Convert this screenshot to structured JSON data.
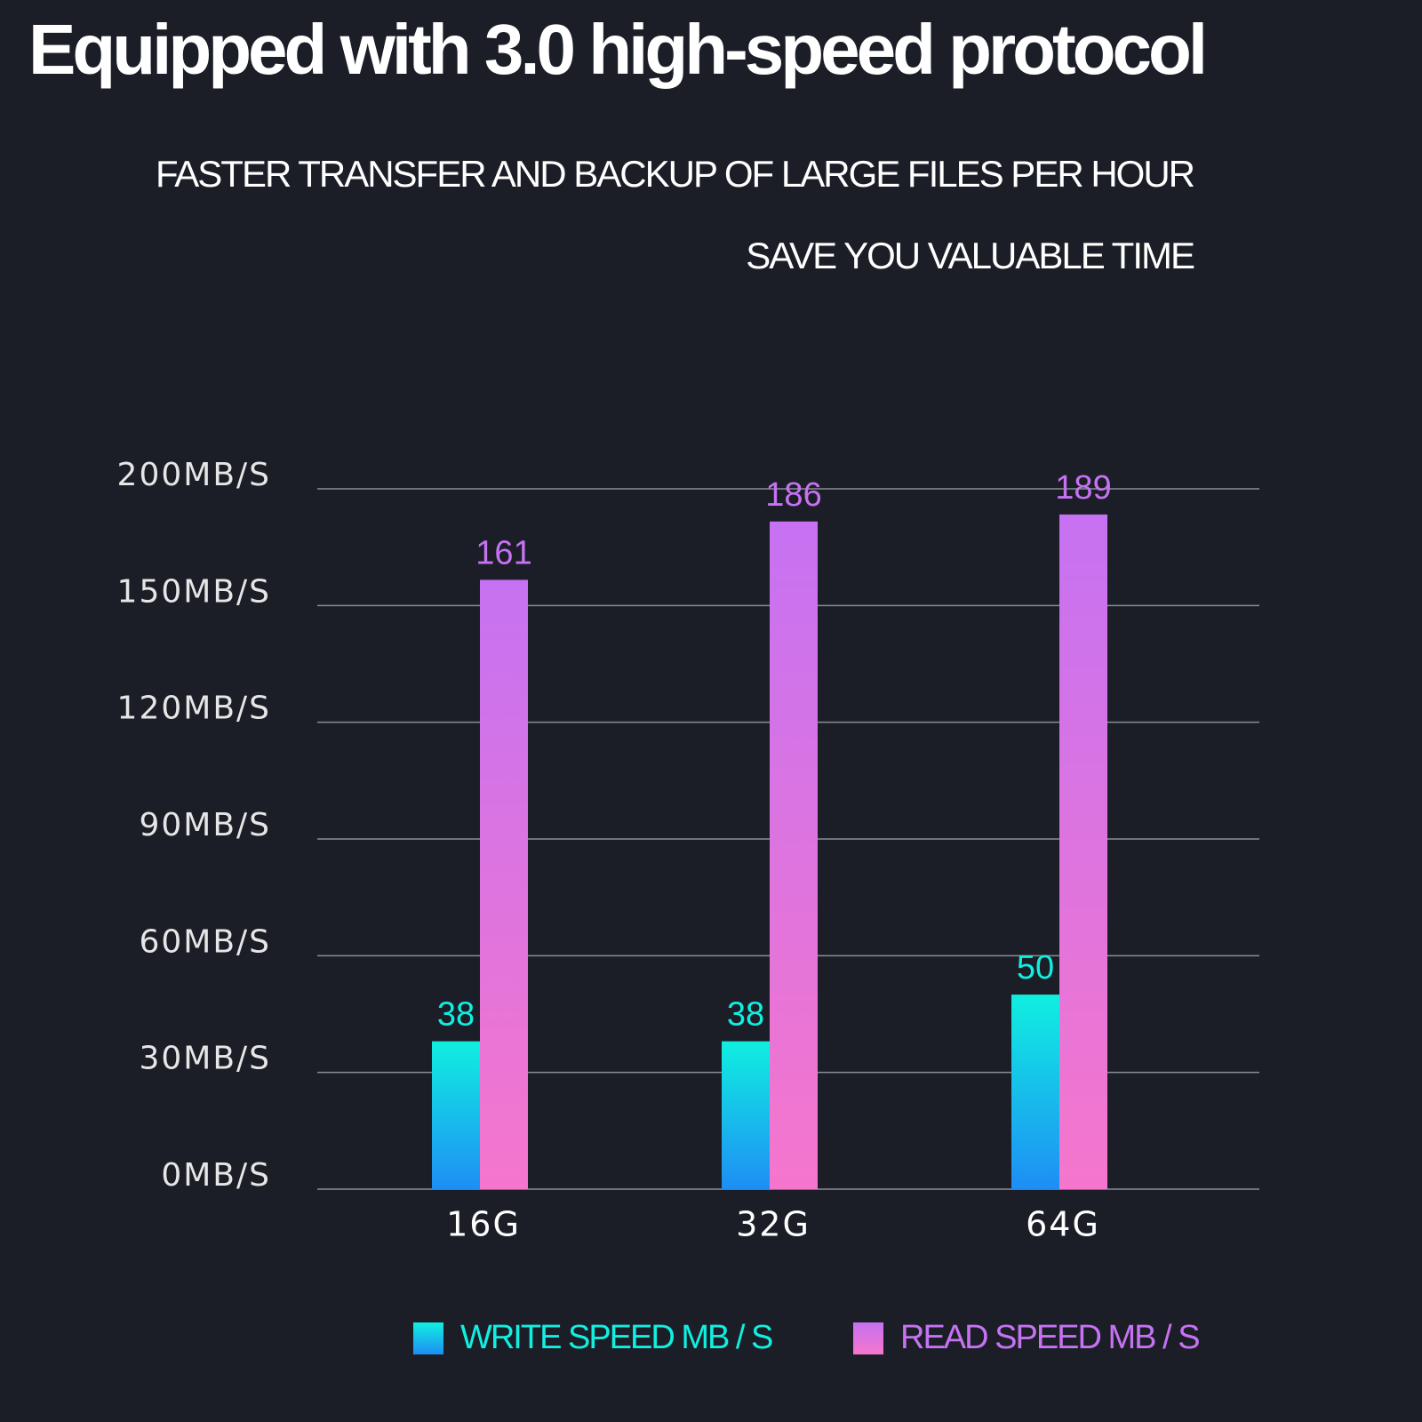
{
  "chart_data": {
    "type": "bar",
    "title": "Equipped with 3.0 high-speed protocol",
    "subtitles": [
      "FASTER TRANSFER AND BACKUP OF LARGE FILES PER HOUR",
      "SAVE YOU VALUABLE TIME"
    ],
    "categories": [
      "16G",
      "32G",
      "64G"
    ],
    "series": [
      {
        "name": "WRITE SPEED MB / S",
        "color": "#10efe0",
        "values": [
          38,
          38,
          50
        ]
      },
      {
        "name": "READ SPEED MB / S",
        "color": "#c672f2",
        "values": [
          161,
          186,
          189
        ]
      }
    ],
    "ylim": [
      0,
      200
    ],
    "yticks": [
      {
        "value": 0,
        "label": "0MB/S"
      },
      {
        "value": 30,
        "label": "30MB/S"
      },
      {
        "value": 60,
        "label": "60MB/S"
      },
      {
        "value": 90,
        "label": "90MB/S"
      },
      {
        "value": 120,
        "label": "120MB/S"
      },
      {
        "value": 150,
        "label": "150MB/S"
      },
      {
        "value": 200,
        "label": "200MB/S"
      }
    ],
    "grid": true,
    "legend": "bottom"
  }
}
